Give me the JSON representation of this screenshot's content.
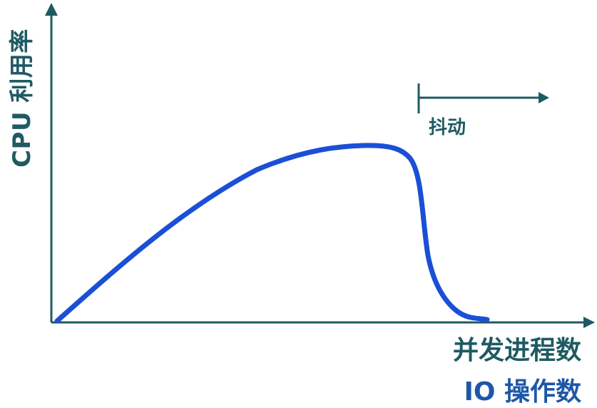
{
  "labels": {
    "y_axis": "CPU 利用率",
    "x_axis_line1": "并发进程数",
    "x_axis_line2": "IO 操作数",
    "thrashing": "抖动"
  },
  "colors": {
    "axis": "#1f5a63",
    "curve": "#1a4fd6",
    "x_label_line2": "#1e57a8"
  }
}
